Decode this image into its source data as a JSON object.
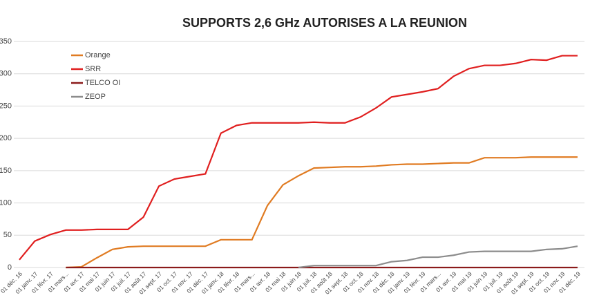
{
  "chart_data": {
    "type": "line",
    "title": "SUPPORTS 2,6 GHz AUTORISES A LA REUNION",
    "categories": [
      "01 déc. 16",
      "01 janv. 17",
      "01 févr. 17",
      "01 mars...",
      "01 avr. 17",
      "01 mai 17",
      "01 juin 17",
      "01 juil. 17",
      "01 août 17",
      "01 sept. 17",
      "01 oct. 17",
      "01 nov. 17",
      "01 déc. 17",
      "01 janv. 18",
      "01 févr. 18",
      "01 mars...",
      "01 avr. 18",
      "01 mai 18",
      "01 juin 18",
      "01 juil. 18",
      "01 août 18",
      "01 sept. 18",
      "01 oct. 18",
      "01 nov. 18",
      "01 déc. 18",
      "01 janv. 19",
      "01 févr. 19",
      "01 mars...",
      "01 avr. 19",
      "01 mai 19",
      "01 juin 19",
      "01 juil. 19",
      "01 août 19",
      "01 sept. 19",
      "01 oct. 19",
      "01 nov. 19",
      "01 déc. 19"
    ],
    "series": [
      {
        "name": "Orange",
        "color": "#e07b22",
        "values": [
          null,
          null,
          null,
          0,
          1,
          15,
          28,
          32,
          33,
          33,
          33,
          33,
          33,
          43,
          43,
          43,
          96,
          128,
          142,
          154,
          155,
          156,
          156,
          157,
          159,
          160,
          160,
          161,
          162,
          162,
          170,
          170,
          170,
          171,
          171,
          171,
          171
        ]
      },
      {
        "name": "SRR",
        "color": "#e01f1f",
        "values": [
          12,
          41,
          51,
          58,
          58,
          59,
          59,
          59,
          78,
          126,
          137,
          141,
          145,
          208,
          220,
          224,
          224,
          224,
          224,
          225,
          224,
          224,
          233,
          247,
          264,
          268,
          272,
          277,
          296,
          308,
          313,
          313,
          316,
          322,
          321,
          328,
          328
        ]
      },
      {
        "name": "TELCO OI",
        "color": "#8b1a1a",
        "values": [
          null,
          null,
          null,
          0,
          0,
          0,
          0,
          0,
          0,
          0,
          0,
          0,
          0,
          0,
          0,
          0,
          0,
          0,
          0,
          0,
          0,
          0,
          0,
          0,
          0,
          0,
          0,
          0,
          0,
          0,
          0,
          0,
          0,
          0,
          0,
          0,
          0
        ]
      },
      {
        "name": "ZEOP",
        "color": "#8c8c8c",
        "values": [
          null,
          null,
          null,
          null,
          null,
          null,
          null,
          null,
          null,
          null,
          null,
          null,
          null,
          null,
          null,
          null,
          null,
          null,
          0,
          3,
          3,
          3,
          3,
          3,
          9,
          11,
          16,
          16,
          19,
          24,
          25,
          25,
          25,
          25,
          28,
          29,
          33
        ]
      }
    ],
    "ylim": [
      0,
      350
    ],
    "yticks": [
      0,
      50,
      100,
      150,
      200,
      250,
      300,
      350
    ],
    "grid": true
  }
}
